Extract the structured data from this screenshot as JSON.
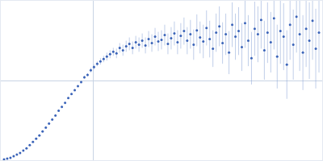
{
  "chart_data": {
    "type": "scatter",
    "marker": "circle",
    "color": "#3a63b8",
    "grid": true,
    "tick_labels": false,
    "xlim": [
      0,
      400
    ],
    "ylim": [
      0,
      200
    ],
    "xticks": [
      115
    ],
    "yticks": [
      100
    ],
    "x": [
      4,
      8,
      12,
      16,
      20,
      24,
      28,
      32,
      36,
      40,
      44,
      48,
      52,
      56,
      60,
      64,
      68,
      72,
      76,
      80,
      84,
      88,
      92,
      96,
      100,
      104,
      108,
      112,
      116,
      120,
      124,
      128,
      132,
      136,
      140,
      144,
      148,
      152,
      156,
      160,
      164,
      168,
      172,
      176,
      180,
      184,
      188,
      192,
      196,
      200,
      204,
      208,
      212,
      216,
      220,
      224,
      228,
      232,
      236,
      240,
      244,
      248,
      252,
      256,
      260,
      264,
      268,
      272,
      276,
      280,
      284,
      288,
      292,
      296,
      300,
      304,
      308,
      312,
      316,
      320,
      324,
      328,
      332,
      336,
      340,
      344,
      348,
      352,
      356,
      360,
      364,
      368,
      372,
      376,
      380,
      384,
      388,
      392,
      396
    ],
    "values": [
      1,
      2,
      3,
      5,
      7,
      9,
      12,
      15,
      19,
      23,
      27,
      31,
      36,
      41,
      46,
      51,
      56,
      62,
      67,
      72,
      78,
      83,
      88,
      93,
      98,
      104,
      107,
      113,
      117,
      121,
      124,
      127,
      130,
      133,
      136,
      134,
      141,
      138,
      143,
      146,
      141,
      148,
      145,
      150,
      144,
      152,
      147,
      155,
      149,
      151,
      157,
      146,
      153,
      159,
      148,
      156,
      162,
      150,
      158,
      145,
      163,
      154,
      149,
      166,
      152,
      140,
      160,
      168,
      147,
      158,
      135,
      170,
      155,
      162,
      142,
      172,
      150,
      128,
      165,
      158,
      176,
      138,
      160,
      148,
      178,
      130,
      162,
      155,
      120,
      170,
      145,
      180,
      158,
      135,
      165,
      150,
      175,
      140,
      160
    ],
    "error": [
      1,
      1,
      1,
      1,
      1,
      1,
      1,
      1,
      1,
      1,
      1,
      1,
      1,
      1,
      1,
      1,
      1,
      1,
      1,
      1,
      1,
      1,
      1,
      1,
      1,
      2,
      2,
      3,
      3,
      3,
      4,
      4,
      5,
      5,
      5,
      6,
      6,
      7,
      7,
      8,
      8,
      8,
      9,
      9,
      10,
      10,
      11,
      11,
      12,
      12,
      13,
      13,
      14,
      15,
      15,
      16,
      17,
      17,
      18,
      19,
      20,
      20,
      21,
      22,
      23,
      23,
      24,
      25,
      26,
      26,
      27,
      28,
      29,
      30,
      30,
      31,
      32,
      33,
      34,
      35,
      36,
      37,
      38,
      38,
      39,
      40,
      41,
      42,
      43,
      44,
      44,
      45,
      46,
      47,
      48,
      48,
      49,
      50,
      50
    ]
  }
}
